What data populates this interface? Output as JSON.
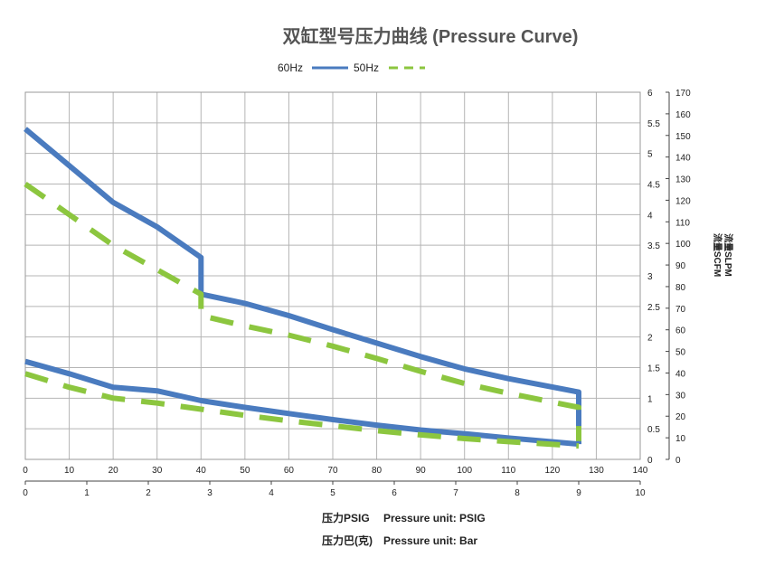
{
  "chart_data": {
    "type": "line",
    "title": "双缸型号压力曲线 (Pressure Curve)",
    "legend": [
      {
        "name": "60Hz",
        "color": "#4a7bbf",
        "style": "solid"
      },
      {
        "name": "50Hz",
        "color": "#8cc63f",
        "style": "dashed"
      }
    ],
    "legend_position": "top-center",
    "grid": true,
    "x_axis_psig": {
      "min": 0,
      "max": 140,
      "ticks": [
        "0",
        "10",
        "20",
        "30",
        "40",
        "50",
        "60",
        "70",
        "80",
        "90",
        "100",
        "110",
        "120",
        "130",
        "140"
      ]
    },
    "x_axis_bar": {
      "min": 0,
      "max": 10,
      "ticks": [
        "0",
        "1",
        "2",
        "3",
        "4",
        "5",
        "6",
        "7",
        "8",
        "9",
        "10"
      ]
    },
    "y_axis_scfm": {
      "min": 0,
      "max": 6,
      "ticks": [
        "0",
        "0.5",
        "1",
        "1.5",
        "2",
        "2.5",
        "3",
        "3.5",
        "4",
        "4.5",
        "5",
        "5.5",
        "6"
      ]
    },
    "y_axis_slpm": {
      "min": 0,
      "max": 170,
      "ticks": [
        "0",
        "10",
        "20",
        "30",
        "40",
        "50",
        "60",
        "70",
        "80",
        "90",
        "100",
        "110",
        "120",
        "130",
        "140",
        "150",
        "160",
        "170"
      ]
    },
    "right_axis_label_1": "流量SLPM",
    "right_axis_label_2": "流量SCFM",
    "xlabel_1_cn": "压力PSIG",
    "xlabel_1_en": "Pressure unit: PSIG",
    "xlabel_2_cn": "压力巴(克)",
    "xlabel_2_en": "Pressure unit: Bar",
    "series": [
      {
        "name": "60Hz",
        "curve": "flow",
        "x": [
          0,
          10,
          20,
          30,
          40,
          40,
          50,
          60,
          70,
          80,
          90,
          100,
          110,
          126,
          126
        ],
        "y": [
          5.4,
          4.8,
          4.2,
          3.8,
          3.3,
          2.7,
          2.55,
          2.35,
          2.12,
          1.9,
          1.68,
          1.48,
          1.32,
          1.1,
          0.25
        ]
      },
      {
        "name": "60Hz",
        "curve": "power",
        "x": [
          0,
          10,
          20,
          30,
          40,
          50,
          60,
          70,
          80,
          90,
          100,
          110,
          126
        ],
        "y": [
          1.6,
          1.4,
          1.18,
          1.12,
          0.96,
          0.85,
          0.75,
          0.65,
          0.56,
          0.48,
          0.42,
          0.35,
          0.25
        ]
      },
      {
        "name": "50Hz",
        "curve": "flow",
        "x": [
          0,
          10,
          20,
          30,
          40,
          40,
          50,
          60,
          70,
          80,
          90,
          100,
          110,
          126,
          126
        ],
        "y": [
          4.5,
          4.0,
          3.5,
          3.1,
          2.7,
          2.35,
          2.18,
          2.03,
          1.85,
          1.65,
          1.44,
          1.24,
          1.08,
          0.85,
          0.3
        ]
      },
      {
        "name": "50Hz",
        "curve": "power",
        "x": [
          0,
          10,
          20,
          30,
          40,
          50,
          60,
          70,
          80,
          90,
          100,
          110,
          126
        ],
        "y": [
          1.4,
          1.18,
          1.0,
          0.92,
          0.82,
          0.72,
          0.63,
          0.55,
          0.47,
          0.4,
          0.34,
          0.29,
          0.22
        ]
      }
    ]
  }
}
